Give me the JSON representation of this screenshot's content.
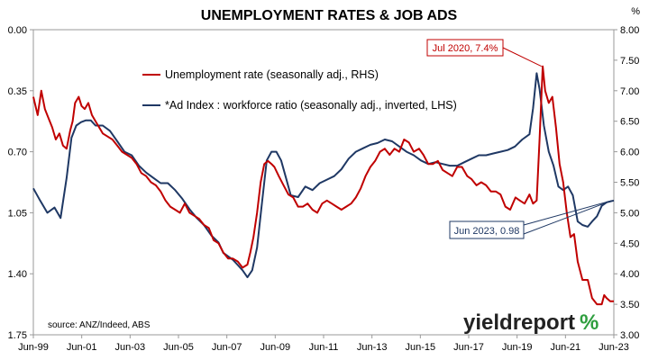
{
  "chart_data": {
    "type": "line",
    "title": "UNEMPLOYMENT RATES & JOB ADS",
    "right_axis_unit": "%",
    "source": "source: ANZ/Indeed, ABS",
    "brand": {
      "text": "yieldreport",
      "symbol": "%"
    },
    "x_ticks": [
      "Jun-99",
      "Jun-01",
      "Jun-03",
      "Jun-05",
      "Jun-07",
      "Jun-09",
      "Jun-11",
      "Jun-13",
      "Jun-15",
      "Jun-17",
      "Jun-19",
      "Jun-21",
      "Jun-23"
    ],
    "x_range": [
      1999.42,
      2023.5
    ],
    "left_axis": {
      "ticks": [
        "0.00",
        "0.35",
        "0.70",
        "1.05",
        "1.40",
        "1.75"
      ],
      "range": [
        0.0,
        1.75
      ],
      "inverted": true
    },
    "right_axis": {
      "ticks": [
        "8.00",
        "7.50",
        "7.00",
        "6.50",
        "6.00",
        "5.50",
        "5.00",
        "4.50",
        "4.00",
        "3.50",
        "3.00"
      ],
      "range": [
        3.0,
        8.0
      ]
    },
    "grid": false,
    "legend_placement": "top-left",
    "series": [
      {
        "name": "Unemployment rate (seasonally adj., RHS)",
        "axis": "right",
        "color": "#c00000",
        "x": [
          1999.42,
          1999.6,
          1999.75,
          1999.9,
          2000.05,
          2000.2,
          2000.35,
          2000.5,
          2000.65,
          2000.8,
          2000.95,
          2001.05,
          2001.15,
          2001.3,
          2001.42,
          2001.55,
          2001.7,
          2001.85,
          2002.0,
          2002.15,
          2002.3,
          2002.5,
          2002.7,
          2002.9,
          2003.1,
          2003.3,
          2003.5,
          2003.7,
          2003.9,
          2004.1,
          2004.3,
          2004.5,
          2004.7,
          2004.9,
          2005.1,
          2005.3,
          2005.5,
          2005.7,
          2005.9,
          2006.1,
          2006.3,
          2006.5,
          2006.7,
          2006.9,
          2007.1,
          2007.3,
          2007.5,
          2007.7,
          2007.9,
          2008.1,
          2008.3,
          2008.42,
          2008.55,
          2008.7,
          2008.85,
          2009.0,
          2009.15,
          2009.3,
          2009.42,
          2009.6,
          2009.8,
          2010.0,
          2010.2,
          2010.4,
          2010.6,
          2010.8,
          2011.0,
          2011.2,
          2011.4,
          2011.6,
          2011.8,
          2012.0,
          2012.2,
          2012.4,
          2012.6,
          2012.8,
          2013.0,
          2013.2,
          2013.4,
          2013.6,
          2013.8,
          2014.0,
          2014.2,
          2014.4,
          2014.6,
          2014.8,
          2015.0,
          2015.2,
          2015.42,
          2015.6,
          2015.8,
          2016.0,
          2016.2,
          2016.4,
          2016.6,
          2016.8,
          2017.0,
          2017.2,
          2017.42,
          2017.6,
          2017.8,
          2018.0,
          2018.2,
          2018.4,
          2018.6,
          2018.8,
          2019.0,
          2019.2,
          2019.42,
          2019.6,
          2019.8,
          2020.0,
          2020.15,
          2020.3,
          2020.42,
          2020.55,
          2020.65,
          2020.8,
          2020.95,
          2021.1,
          2021.25,
          2021.4,
          2021.55,
          2021.7,
          2021.85,
          2022.0,
          2022.2,
          2022.42,
          2022.6,
          2022.8,
          2023.0,
          2023.1,
          2023.2,
          2023.35,
          2023.5
        ],
        "values": [
          6.9,
          6.6,
          7.0,
          6.7,
          6.55,
          6.4,
          6.2,
          6.3,
          6.1,
          6.05,
          6.35,
          6.5,
          6.8,
          6.9,
          6.75,
          6.7,
          6.8,
          6.6,
          6.5,
          6.4,
          6.3,
          6.25,
          6.2,
          6.1,
          6.0,
          5.95,
          5.9,
          5.8,
          5.65,
          5.6,
          5.5,
          5.45,
          5.35,
          5.2,
          5.1,
          5.05,
          5.0,
          5.15,
          5.0,
          4.95,
          4.9,
          4.8,
          4.75,
          4.55,
          4.5,
          4.35,
          4.25,
          4.25,
          4.2,
          4.1,
          4.15,
          4.35,
          4.6,
          5.0,
          5.5,
          5.8,
          5.85,
          5.8,
          5.75,
          5.6,
          5.45,
          5.3,
          5.25,
          5.1,
          5.1,
          5.15,
          5.05,
          5.0,
          5.15,
          5.2,
          5.15,
          5.1,
          5.05,
          5.1,
          5.15,
          5.25,
          5.4,
          5.6,
          5.75,
          5.85,
          6.0,
          6.05,
          5.95,
          6.05,
          6.0,
          6.2,
          6.15,
          6.0,
          6.05,
          5.95,
          5.8,
          5.8,
          5.85,
          5.7,
          5.65,
          5.6,
          5.75,
          5.75,
          5.6,
          5.55,
          5.45,
          5.5,
          5.45,
          5.35,
          5.35,
          5.3,
          5.1,
          5.05,
          5.25,
          5.2,
          5.15,
          5.3,
          5.15,
          5.2,
          6.2,
          7.4,
          7.0,
          6.8,
          6.9,
          6.4,
          5.8,
          5.5,
          5.0,
          4.6,
          4.65,
          4.2,
          3.9,
          3.9,
          3.6,
          3.5,
          3.5,
          3.65,
          3.6,
          3.55,
          3.55
        ]
      },
      {
        "name": "*Ad Index : workforce ratio (seasonally adj., inverted, LHS)",
        "axis": "left",
        "color": "#1f3864",
        "x": [
          1999.42,
          1999.7,
          2000.0,
          2000.3,
          2000.55,
          2000.8,
          2001.0,
          2001.2,
          2001.4,
          2001.6,
          2001.8,
          2002.0,
          2002.3,
          2002.6,
          2002.9,
          2003.2,
          2003.5,
          2003.8,
          2004.1,
          2004.4,
          2004.7,
          2005.0,
          2005.3,
          2005.6,
          2005.9,
          2006.2,
          2006.5,
          2006.8,
          2007.1,
          2007.3,
          2007.5,
          2007.7,
          2007.9,
          2008.1,
          2008.3,
          2008.5,
          2008.7,
          2008.9,
          2009.1,
          2009.3,
          2009.5,
          2009.7,
          2009.9,
          2010.1,
          2010.4,
          2010.7,
          2011.0,
          2011.3,
          2011.6,
          2011.9,
          2012.2,
          2012.5,
          2012.8,
          2013.1,
          2013.4,
          2013.7,
          2014.0,
          2014.3,
          2014.6,
          2014.9,
          2015.2,
          2015.5,
          2015.8,
          2016.1,
          2016.4,
          2016.7,
          2017.0,
          2017.3,
          2017.6,
          2017.9,
          2018.2,
          2018.5,
          2018.8,
          2019.1,
          2019.4,
          2019.7,
          2020.0,
          2020.15,
          2020.3,
          2020.42,
          2020.6,
          2020.8,
          2021.0,
          2021.2,
          2021.4,
          2021.6,
          2021.8,
          2022.0,
          2022.2,
          2022.42,
          2022.6,
          2022.8,
          2023.0,
          2023.2,
          2023.5
        ],
        "values": [
          0.91,
          0.98,
          1.05,
          1.02,
          1.08,
          0.85,
          0.62,
          0.55,
          0.53,
          0.52,
          0.52,
          0.55,
          0.55,
          0.58,
          0.64,
          0.7,
          0.72,
          0.78,
          0.82,
          0.85,
          0.88,
          0.88,
          0.92,
          0.97,
          1.03,
          1.08,
          1.12,
          1.18,
          1.22,
          1.28,
          1.3,
          1.32,
          1.35,
          1.38,
          1.42,
          1.38,
          1.25,
          1.0,
          0.75,
          0.7,
          0.7,
          0.75,
          0.85,
          0.95,
          0.96,
          0.9,
          0.92,
          0.88,
          0.86,
          0.84,
          0.8,
          0.74,
          0.7,
          0.68,
          0.66,
          0.65,
          0.63,
          0.64,
          0.67,
          0.7,
          0.72,
          0.75,
          0.77,
          0.76,
          0.77,
          0.78,
          0.78,
          0.76,
          0.74,
          0.72,
          0.72,
          0.71,
          0.7,
          0.69,
          0.67,
          0.63,
          0.6,
          0.45,
          0.25,
          0.34,
          0.55,
          0.7,
          0.78,
          0.9,
          0.92,
          0.9,
          0.95,
          1.1,
          1.12,
          1.13,
          1.1,
          1.07,
          1.01,
          0.99,
          0.98
        ]
      }
    ],
    "annotations": [
      {
        "text": "Jul 2020, 7.4%",
        "x": 2020.5,
        "y": 7.4,
        "axis": "right",
        "color": "#c00000"
      },
      {
        "text": "Jun 2023, 0.98",
        "x": 2023.42,
        "y": 0.98,
        "axis": "left",
        "color": "#1f3864"
      }
    ]
  }
}
